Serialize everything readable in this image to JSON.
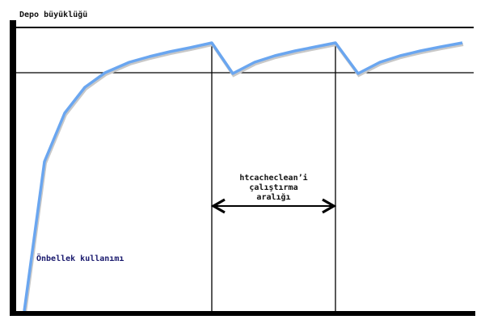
{
  "labels": {
    "y_axis": "Depo büyüklüğü",
    "curve": "Önbellek kullanımı",
    "interval": [
      "htcacheclean’i",
      "çalıştırma",
      "aralığı"
    ]
  },
  "colors": {
    "curve": "#6aa6f0",
    "axes": "#000000"
  }
}
